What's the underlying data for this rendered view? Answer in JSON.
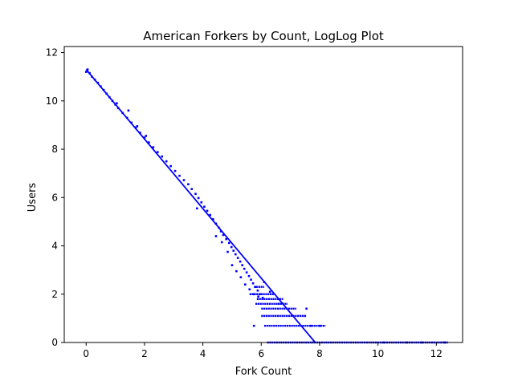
{
  "chart_data": {
    "type": "scatter",
    "title": "American Forkers by Count, LogLog Plot",
    "xlabel": "Fork Count",
    "ylabel": "Users",
    "xlim": [
      -0.75,
      12.9
    ],
    "ylim": [
      0,
      12.25
    ],
    "x_ticks": [
      "0",
      "2",
      "4",
      "6",
      "8",
      "10",
      "12"
    ],
    "y_ticks": [
      "0",
      "2",
      "4",
      "6",
      "8",
      "10",
      "12"
    ],
    "grid": false,
    "legend": "none",
    "colors": {
      "data": "#0000ff",
      "fit_line": "#0000ff",
      "axes": "#000000"
    },
    "fit_line": {
      "x": [
        0.0,
        7.85
      ],
      "y": [
        11.3,
        0.0
      ]
    },
    "series": [
      {
        "x": [
          0.0,
          0.05,
          0.12,
          0.2,
          0.3,
          0.4,
          0.5,
          0.6,
          0.7,
          0.8,
          0.9,
          1.0,
          1.1,
          1.25,
          1.4,
          1.55,
          1.7,
          1.85,
          2.0,
          2.15,
          2.3,
          2.45,
          2.6,
          2.75,
          2.9,
          3.05,
          3.2,
          3.35,
          3.5,
          3.62,
          3.75,
          3.85,
          3.95,
          4.05,
          4.15,
          4.25,
          4.35,
          4.45,
          4.55,
          4.62,
          4.7,
          4.8,
          4.9,
          4.98,
          5.05,
          5.12,
          5.2,
          5.28,
          5.35,
          5.42,
          5.5,
          5.58,
          5.65,
          5.72,
          5.8,
          5.88,
          5.95,
          6.05,
          1.05,
          1.45,
          1.75,
          2.05,
          3.8,
          4.45,
          4.65,
          4.85,
          5.0,
          5.15,
          5.3,
          5.45,
          5.6,
          5.75,
          5.9,
          6.1,
          6.3
        ],
        "y": [
          11.2,
          11.3,
          11.15,
          11.0,
          10.88,
          10.75,
          10.6,
          10.45,
          10.3,
          10.15,
          10.0,
          9.85,
          9.7,
          9.5,
          9.3,
          9.1,
          8.9,
          8.68,
          8.48,
          8.28,
          8.08,
          7.88,
          7.7,
          7.5,
          7.3,
          7.1,
          6.9,
          6.72,
          6.55,
          6.35,
          6.15,
          5.98,
          5.8,
          5.62,
          5.45,
          5.28,
          5.1,
          4.92,
          4.75,
          4.6,
          4.45,
          4.28,
          4.12,
          3.95,
          3.8,
          3.65,
          3.5,
          3.35,
          3.2,
          3.05,
          2.9,
          2.75,
          2.6,
          2.45,
          2.3,
          2.15,
          2.0,
          1.85,
          9.9,
          9.6,
          8.95,
          8.55,
          5.55,
          4.4,
          4.15,
          3.75,
          3.2,
          2.95,
          2.7,
          2.4,
          2.2,
          2.0,
          1.9,
          2.5,
          2.1
        ]
      }
    ],
    "bands": [
      {
        "y": 2.3,
        "x_start": 5.75,
        "x_end": 6.1
      },
      {
        "y": 2.0,
        "x_start": 5.6,
        "x_end": 6.45
      },
      {
        "y": 1.8,
        "x_start": 5.85,
        "x_end": 6.75
      },
      {
        "y": 1.6,
        "x_start": 5.8,
        "x_end": 6.9
      },
      {
        "y": 1.4,
        "x_start": 6.0,
        "x_end": 7.2
      },
      {
        "y": 1.1,
        "x_start": 6.0,
        "x_end": 7.45
      },
      {
        "y": 0.69,
        "x_start": 6.1,
        "x_end": 8.2
      },
      {
        "y": 0.0,
        "x_start": 6.2,
        "x_end": 12.4
      }
    ],
    "extra_points": {
      "x": [
        7.55,
        7.5,
        7.7,
        8.0,
        5.75,
        6.6,
        10.2,
        11.0,
        11.5,
        12.3
      ],
      "y": [
        1.4,
        1.1,
        0.69,
        0.69,
        0.69,
        1.6,
        0.0,
        0.0,
        0.0,
        0.0
      ]
    }
  }
}
